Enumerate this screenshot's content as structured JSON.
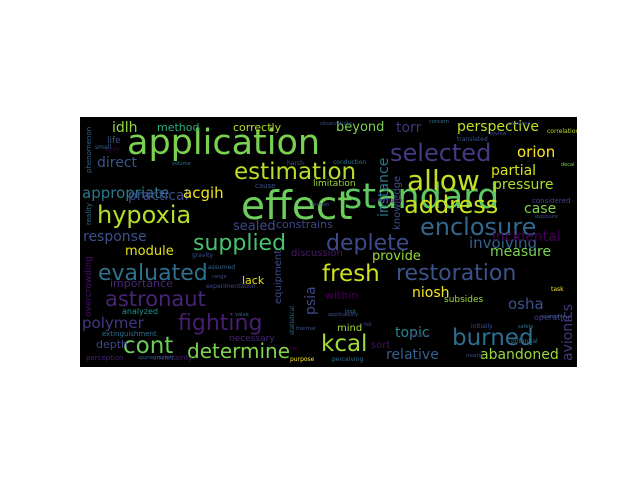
{
  "words": [
    {
      "text": "application",
      "color": "#7ad151"
    },
    {
      "text": "standard",
      "color": "#5ec962"
    },
    {
      "text": "effect",
      "color": "#6ccd5a"
    },
    {
      "text": "hypoxia",
      "color": "#b5de2b"
    },
    {
      "text": "estimation",
      "color": "#b8de29"
    },
    {
      "text": "allow",
      "color": "#c2df23"
    },
    {
      "text": "address",
      "color": "#cae11f"
    },
    {
      "text": "selected",
      "color": "#443983"
    },
    {
      "text": "enclosure",
      "color": "#31688e"
    },
    {
      "text": "supplied",
      "color": "#4ac16d"
    },
    {
      "text": "deplete",
      "color": "#3e4a89"
    },
    {
      "text": "fresh",
      "color": "#d0e11c"
    },
    {
      "text": "restoration",
      "color": "#3b528b"
    },
    {
      "text": "evaluated",
      "color": "#2c728e"
    },
    {
      "text": "astronaut",
      "color": "#482475"
    },
    {
      "text": "fighting",
      "color": "#481f70"
    },
    {
      "text": "burned",
      "color": "#2e6e8e"
    },
    {
      "text": "cont",
      "color": "#6ccd5a"
    },
    {
      "text": "determine",
      "color": "#7fd34e"
    },
    {
      "text": "kcal",
      "color": "#a2da37"
    },
    {
      "text": "polymer",
      "color": "#453781"
    },
    {
      "text": "involving",
      "color": "#33638d"
    },
    {
      "text": "appropriate",
      "color": "#2a788e"
    },
    {
      "text": "perspective",
      "color": "#bddf26"
    },
    {
      "text": "orion",
      "color": "#fde725"
    },
    {
      "text": "partial",
      "color": "#d2e21b"
    },
    {
      "text": "pressure",
      "color": "#addc30"
    },
    {
      "text": "response",
      "color": "#3b528b"
    },
    {
      "text": "practical",
      "color": "#3e4989"
    },
    {
      "text": "acgih",
      "color": "#f1e51d"
    },
    {
      "text": "idlh",
      "color": "#8fd744"
    },
    {
      "text": "torr",
      "color": "#46327e"
    },
    {
      "text": "direct",
      "color": "#3b528b"
    },
    {
      "text": "instance",
      "color": "#2a768e"
    },
    {
      "text": "case",
      "color": "#84d44b"
    },
    {
      "text": "incidental",
      "color": "#440154"
    },
    {
      "text": "measure",
      "color": "#7cd250"
    },
    {
      "text": "module",
      "color": "#e5e419"
    },
    {
      "text": "sealed",
      "color": "#3e4a89"
    },
    {
      "text": "provide",
      "color": "#9bd93c"
    },
    {
      "text": "niosh",
      "color": "#f8e621"
    },
    {
      "text": "osha",
      "color": "#3b528b"
    },
    {
      "text": "avionics",
      "color": "#453882"
    },
    {
      "text": "topic",
      "color": "#25848e"
    },
    {
      "text": "relative",
      "color": "#355f8d"
    },
    {
      "text": "abandoned",
      "color": "#9bd93c"
    },
    {
      "text": "psia",
      "color": "#3f4788"
    },
    {
      "text": "equipment",
      "color": "#3e4a89"
    },
    {
      "text": "lack",
      "color": "#e7e419"
    },
    {
      "text": "importance",
      "color": "#482677"
    },
    {
      "text": "constrains",
      "color": "#404588"
    },
    {
      "text": "discussion",
      "color": "#481a6c"
    },
    {
      "text": "knowledge",
      "color": "#3e4a89"
    },
    {
      "text": "beyond",
      "color": "#7ad151"
    },
    {
      "text": "correctly",
      "color": "#b5de2b"
    },
    {
      "text": "method",
      "color": "#29af7f"
    },
    {
      "text": "limitation",
      "color": "#9bd93c"
    },
    {
      "text": "depth",
      "color": "#3f4889"
    },
    {
      "text": "within",
      "color": "#440154"
    },
    {
      "text": "sort",
      "color": "#471063"
    },
    {
      "text": "mind",
      "color": "#a2da37"
    },
    {
      "text": "subsides",
      "color": "#9fda3a"
    },
    {
      "text": "operation",
      "color": "#433e85"
    },
    {
      "text": "necessary",
      "color": "#482475"
    },
    {
      "text": "extinguishment",
      "color": "#2d708e"
    },
    {
      "text": "overcrowding",
      "color": "#471365"
    },
    {
      "text": "analyzed",
      "color": "#1f968b"
    },
    {
      "text": "perception",
      "color": "#482173"
    },
    {
      "text": "uncertainty",
      "color": "#481f70"
    },
    {
      "text": "phenomenon",
      "color": "#32648e"
    },
    {
      "text": "life",
      "color": "#3b528b"
    },
    {
      "text": "reality",
      "color": "#2c728e"
    },
    {
      "text": "experimentation",
      "color": "#404688"
    },
    {
      "text": "statistical",
      "color": "#2d708e"
    },
    {
      "text": "considered",
      "color": "#414487"
    },
    {
      "text": "initially",
      "color": "#3b528b"
    },
    {
      "text": "source",
      "color": "#482979"
    },
    {
      "text": "potential",
      "color": "#2c728e"
    },
    {
      "text": "translated",
      "color": "#3b528b"
    },
    {
      "text": "conduction",
      "color": "#2d708e"
    },
    {
      "text": "approximately",
      "color": "#3b528b"
    },
    {
      "text": "purpose",
      "color": "#fde725"
    },
    {
      "text": "gravity",
      "color": "#3b528b"
    },
    {
      "text": "assumed",
      "color": "#31688e"
    },
    {
      "text": "perceiving",
      "color": "#2d708e"
    },
    {
      "text": "applicability",
      "color": "#3b528b"
    },
    {
      "text": "flammability",
      "color": "#440154"
    },
    {
      "text": "observations",
      "color": "#3e4a89"
    },
    {
      "text": "correlation",
      "color": "#b8de29"
    },
    {
      "text": "examples",
      "color": "#3b528b"
    },
    {
      "text": "review",
      "color": "#3e4a89"
    },
    {
      "text": "tab",
      "color": "#440154"
    },
    {
      "text": "cause",
      "color": "#3b528b"
    },
    {
      "text": "small",
      "color": "#31688e"
    },
    {
      "text": "body",
      "color": "#440154"
    },
    {
      "text": "volume",
      "color": "#2c728e"
    },
    {
      "text": "thermal",
      "color": "#3b528b"
    },
    {
      "text": "safety",
      "color": "#2d708e"
    },
    {
      "text": "fall",
      "color": "#3e4a89"
    },
    {
      "text": "decal",
      "color": "#7ad151"
    },
    {
      "text": "harsh",
      "color": "#3b528b"
    },
    {
      "text": "value",
      "color": "#31688e"
    },
    {
      "text": "consume",
      "color": "#3b528b"
    },
    {
      "text": "exposure",
      "color": "#3e4a89"
    },
    {
      "text": "concern",
      "color": "#2c728e"
    },
    {
      "text": "limit",
      "color": "#31688e"
    },
    {
      "text": "human",
      "color": "#3b528b"
    },
    {
      "text": "range",
      "color": "#3e4a89"
    },
    {
      "text": "task",
      "color": "#fde725"
    },
    {
      "text": "mostly",
      "color": "#3b528b"
    }
  ]
}
